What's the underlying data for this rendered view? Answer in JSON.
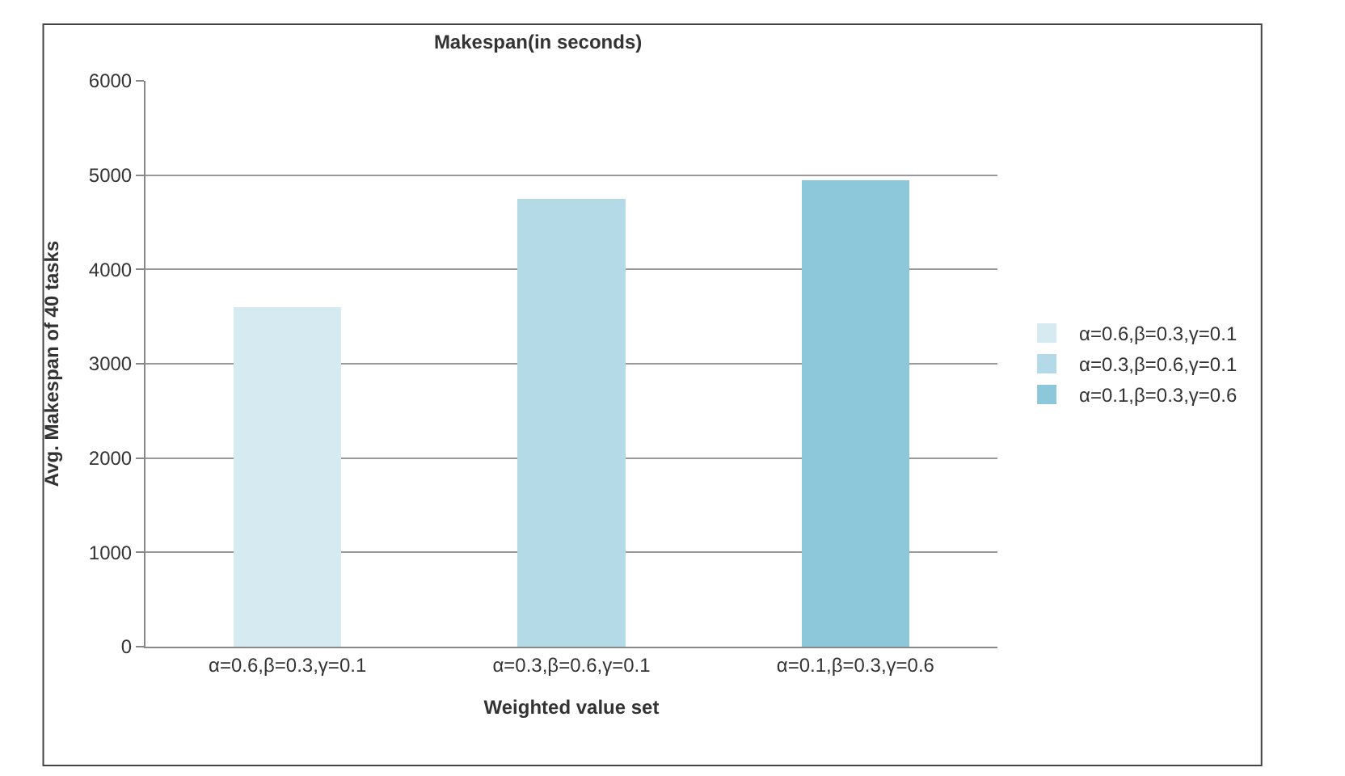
{
  "chart_data": {
    "type": "bar",
    "title": "Makespan(in seconds)",
    "xlabel": "Weighted value set",
    "ylabel": "Avg. Makespan of 40 tasks",
    "categories": [
      "α=0.6,β=0.3,γ=0.1",
      "α=0.3,β=0.6,γ=0.1",
      "α=0.1,β=0.3,γ=0.6"
    ],
    "series": [
      {
        "name": "α=0.6,β=0.3,γ=0.1",
        "color": "#d5ebf1",
        "values": [
          3600,
          null,
          null
        ]
      },
      {
        "name": "α=0.3,β=0.6,γ=0.1",
        "color": "#b3dae6",
        "values": [
          null,
          4750,
          null
        ]
      },
      {
        "name": "α=0.1,β=0.3,γ=0.6",
        "color": "#8cc8da",
        "values": [
          null,
          null,
          4950
        ]
      }
    ],
    "ylim": [
      0,
      6000
    ],
    "yticks": [
      0,
      1000,
      2000,
      3000,
      4000,
      5000,
      6000
    ],
    "grid": "y",
    "legend": "right",
    "stacked": true
  }
}
